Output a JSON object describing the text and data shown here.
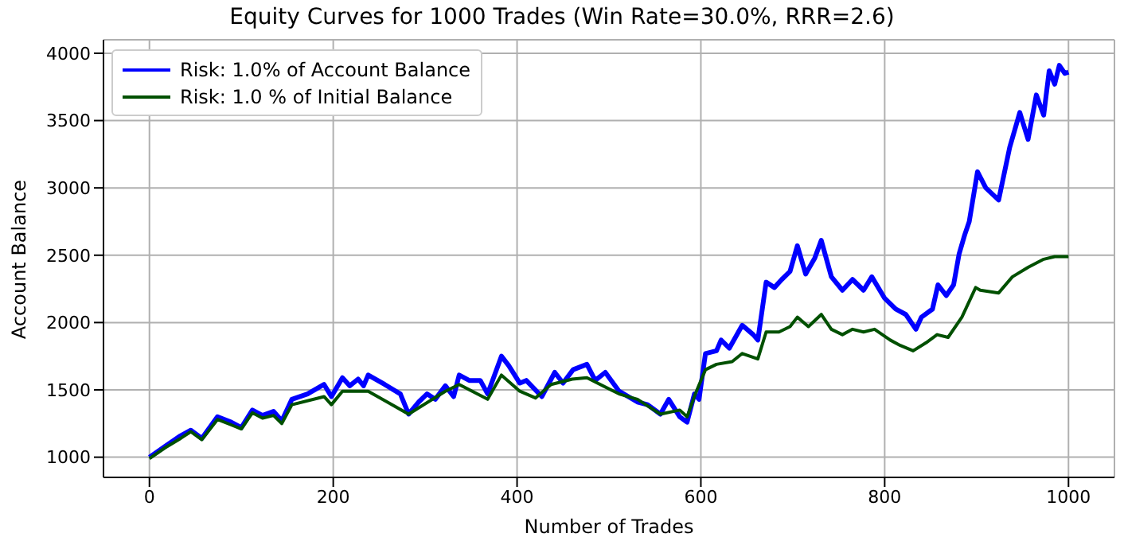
{
  "chart_data": {
    "type": "line",
    "title": "Equity Curves for 1000 Trades (Win Rate=30.0%, RRR=2.6)",
    "xlabel": "Number of Trades",
    "ylabel": "Account Balance",
    "xlim": [
      -50,
      1050
    ],
    "ylim": [
      850,
      4100
    ],
    "xticks": [
      0,
      200,
      400,
      600,
      800,
      1000
    ],
    "yticks": [
      1000,
      1500,
      2000,
      2500,
      3000,
      3500,
      4000
    ],
    "grid": true,
    "legend": "top left",
    "line_style": "solid",
    "marker": "none",
    "series": [
      {
        "name": "Risk: 1.0% of Account Balance",
        "color": "#0000ff",
        "x": [
          0,
          17,
          34,
          45,
          57,
          74,
          89,
          100,
          112,
          123,
          135,
          144,
          155,
          172,
          190,
          198,
          210,
          218,
          227,
          233,
          238,
          256,
          273,
          282,
          293,
          302,
          311,
          322,
          331,
          337,
          348,
          360,
          368,
          383,
          391,
          403,
          410,
          427,
          441,
          450,
          461,
          476,
          485,
          496,
          511,
          531,
          542,
          556,
          565,
          577,
          585,
          593,
          598,
          605,
          617,
          622,
          631,
          645,
          657,
          662,
          671,
          680,
          688,
          697,
          705,
          714,
          724,
          731,
          742,
          754,
          765,
          777,
          786,
          800,
          812,
          823,
          834,
          840,
          852,
          858,
          867,
          875,
          881,
          887,
          892,
          901,
          910,
          924,
          936,
          947,
          956,
          965,
          973,
          979,
          985,
          990,
          996,
          1000
        ],
        "values": [
          1000,
          1080,
          1160,
          1200,
          1140,
          1300,
          1260,
          1220,
          1350,
          1310,
          1340,
          1270,
          1430,
          1470,
          1540,
          1450,
          1590,
          1530,
          1580,
          1530,
          1610,
          1540,
          1470,
          1320,
          1410,
          1470,
          1430,
          1530,
          1450,
          1610,
          1570,
          1570,
          1470,
          1750,
          1680,
          1550,
          1570,
          1450,
          1630,
          1550,
          1650,
          1690,
          1570,
          1630,
          1490,
          1410,
          1390,
          1320,
          1430,
          1300,
          1260,
          1470,
          1430,
          1770,
          1790,
          1870,
          1810,
          1980,
          1910,
          1870,
          2300,
          2260,
          2320,
          2380,
          2570,
          2360,
          2480,
          2610,
          2340,
          2240,
          2320,
          2240,
          2340,
          2180,
          2100,
          2060,
          1950,
          2040,
          2100,
          2280,
          2200,
          2280,
          2510,
          2650,
          2750,
          3120,
          3000,
          2910,
          3300,
          3560,
          3360,
          3690,
          3540,
          3870,
          3770,
          3910,
          3850,
          3860
        ]
      },
      {
        "name": "Risk: 1.0 % of Initial Balance",
        "color": "#005000",
        "x": [
          0,
          17,
          34,
          45,
          57,
          74,
          89,
          100,
          112,
          123,
          135,
          144,
          155,
          190,
          198,
          210,
          238,
          282,
          322,
          337,
          368,
          383,
          403,
          420,
          437,
          460,
          476,
          511,
          531,
          556,
          577,
          585,
          594,
          605,
          617,
          634,
          645,
          662,
          671,
          685,
          697,
          705,
          717,
          731,
          742,
          754,
          765,
          777,
          789,
          806,
          817,
          831,
          845,
          857,
          869,
          884,
          899,
          904,
          924,
          939,
          956,
          973,
          985,
          1000
        ],
        "values": [
          990,
          1070,
          1140,
          1190,
          1130,
          1280,
          1240,
          1210,
          1330,
          1290,
          1310,
          1250,
          1390,
          1450,
          1390,
          1490,
          1490,
          1320,
          1490,
          1540,
          1430,
          1610,
          1490,
          1440,
          1540,
          1580,
          1590,
          1470,
          1430,
          1320,
          1350,
          1300,
          1470,
          1650,
          1690,
          1710,
          1770,
          1730,
          1930,
          1930,
          1970,
          2040,
          1970,
          2060,
          1950,
          1910,
          1950,
          1930,
          1950,
          1870,
          1830,
          1790,
          1850,
          1910,
          1890,
          2040,
          2260,
          2240,
          2220,
          2340,
          2410,
          2470,
          2490,
          2490
        ]
      }
    ]
  }
}
